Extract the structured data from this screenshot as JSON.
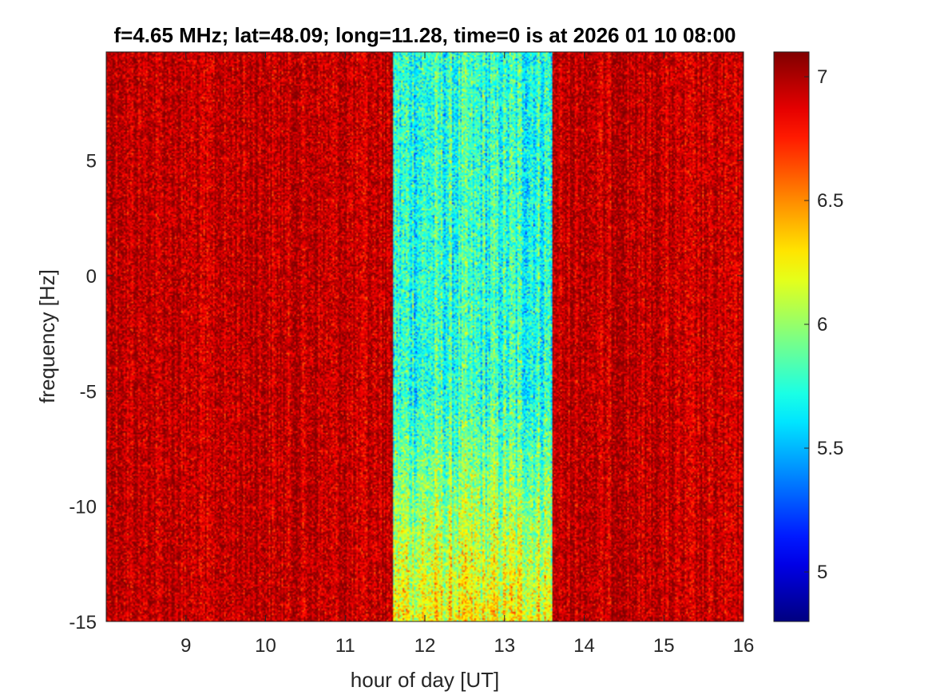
{
  "chart_data": {
    "type": "heatmap",
    "title": "f=4.65 MHz;  lat=48.09; long=11.28, time=0 is at 2026 01 10 08:00",
    "xlabel": "hour of day [UT]",
    "ylabel": "frequency [Hz]",
    "xlim": [
      8,
      16
    ],
    "ylim": [
      -15,
      9.7
    ],
    "xticks": [
      9,
      10,
      11,
      12,
      13,
      14,
      15,
      16
    ],
    "xtick_labels": [
      "9",
      "10",
      "11",
      "12",
      "13",
      "14",
      "15",
      "16"
    ],
    "yticks": [
      -15,
      -10,
      -5,
      0,
      5
    ],
    "ytick_labels": [
      "-15",
      "-10",
      "-5",
      "0",
      "5"
    ],
    "colorbar": {
      "clim": [
        4.8,
        7.1
      ],
      "ticks": [
        5,
        5.5,
        6,
        6.5,
        7
      ],
      "tick_labels": [
        "5",
        "5.5",
        "6",
        "6.5",
        "7"
      ],
      "colormap": "jet",
      "placement": "right"
    },
    "regions": [
      {
        "x_from": 8.0,
        "x_to": 11.6,
        "base_value": 6.95,
        "spread": 0.2
      },
      {
        "x_from": 11.6,
        "x_to": 13.6,
        "base_value": 5.75,
        "spread": 0.28,
        "low_freq_edge_value": 6.25
      },
      {
        "x_from": 13.6,
        "x_to": 16.0,
        "base_value": 6.95,
        "spread": 0.2
      }
    ],
    "grid": false
  }
}
